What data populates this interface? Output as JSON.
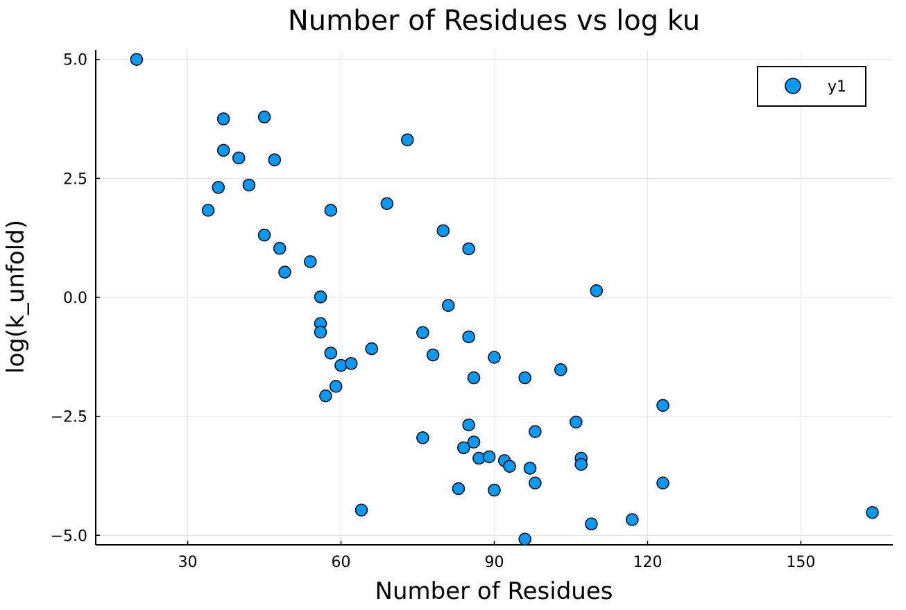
{
  "chart_data": {
    "type": "scatter",
    "title": "Number of Residues vs log ku",
    "xlabel": "Number of Residues",
    "ylabel": "log(k_unfold)",
    "xlim": [
      12,
      168
    ],
    "ylim": [
      -5.2,
      5.2
    ],
    "xticks": [
      30,
      60,
      90,
      120,
      150
    ],
    "xtick_labels": [
      "30",
      "60",
      "90",
      "120",
      "150"
    ],
    "yticks": [
      5.0,
      2.5,
      0.0,
      -2.5,
      -5.0
    ],
    "ytick_labels": [
      "5.0",
      "2.5",
      "0.0",
      "−2.5",
      "−5.0"
    ],
    "grid": true,
    "legend": {
      "position": "top-right",
      "entries": [
        "y1"
      ]
    },
    "colors": {
      "series": "#009af9",
      "edge": "#000000"
    },
    "series": [
      {
        "name": "y1",
        "points": [
          [
            20,
            5.0
          ],
          [
            34,
            1.83
          ],
          [
            36,
            2.31
          ],
          [
            37,
            3.75
          ],
          [
            37,
            3.09
          ],
          [
            40,
            2.93
          ],
          [
            42,
            2.36
          ],
          [
            45,
            3.79
          ],
          [
            45,
            1.31
          ],
          [
            47,
            2.89
          ],
          [
            48,
            1.03
          ],
          [
            49,
            0.53
          ],
          [
            54,
            0.75
          ],
          [
            56,
            0.01
          ],
          [
            56,
            -0.55
          ],
          [
            56,
            -0.73
          ],
          [
            57,
            -2.07
          ],
          [
            58,
            1.83
          ],
          [
            58,
            -1.17
          ],
          [
            59,
            -1.87
          ],
          [
            60,
            -1.43
          ],
          [
            62,
            -1.39
          ],
          [
            64,
            -4.47
          ],
          [
            66,
            -1.08
          ],
          [
            69,
            1.97
          ],
          [
            73,
            3.31
          ],
          [
            76,
            -0.74
          ],
          [
            76,
            -2.95
          ],
          [
            78,
            -1.21
          ],
          [
            80,
            1.4
          ],
          [
            81,
            -0.17
          ],
          [
            83,
            -4.02
          ],
          [
            84,
            -3.16
          ],
          [
            85,
            1.02
          ],
          [
            85,
            -0.83
          ],
          [
            85,
            -2.68
          ],
          [
            86,
            -1.69
          ],
          [
            86,
            -3.04
          ],
          [
            87,
            -3.38
          ],
          [
            89,
            -3.35
          ],
          [
            90,
            -1.26
          ],
          [
            90,
            -4.05
          ],
          [
            92,
            -3.43
          ],
          [
            93,
            -3.55
          ],
          [
            96,
            -1.69
          ],
          [
            96,
            -5.08
          ],
          [
            97,
            -3.59
          ],
          [
            98,
            -2.82
          ],
          [
            98,
            -3.9
          ],
          [
            103,
            -1.52
          ],
          [
            106,
            -2.62
          ],
          [
            107,
            -3.38
          ],
          [
            107,
            -3.51
          ],
          [
            109,
            -4.76
          ],
          [
            110,
            0.14
          ],
          [
            117,
            -4.67
          ],
          [
            123,
            -2.27
          ],
          [
            123,
            -3.9
          ],
          [
            164,
            -4.52
          ]
        ]
      }
    ]
  }
}
